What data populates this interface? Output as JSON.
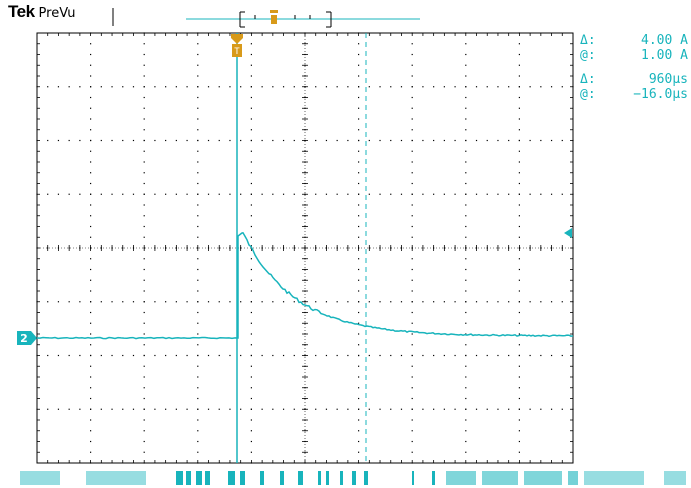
{
  "header": {
    "brand": "Tek",
    "mode": "PreVu"
  },
  "channel": {
    "marker_label": "2",
    "color": "#18b4bc"
  },
  "trigger": {
    "marker_color": "#d89a1a",
    "level_arrow_color": "#18b4bc"
  },
  "readout": {
    "rows": [
      {
        "symbol": "Δ:",
        "value": "4.00 A"
      },
      {
        "symbol": "@:",
        "value": "1.00 A"
      },
      {
        "symbol": "Δ:",
        "value": "960µs"
      },
      {
        "symbol": "@:",
        "value": "−16.0µs"
      }
    ]
  },
  "colors": {
    "trace": "#18b4bc",
    "grid": "#000000",
    "trigger": "#d89a1a",
    "background": "#ffffff"
  }
}
